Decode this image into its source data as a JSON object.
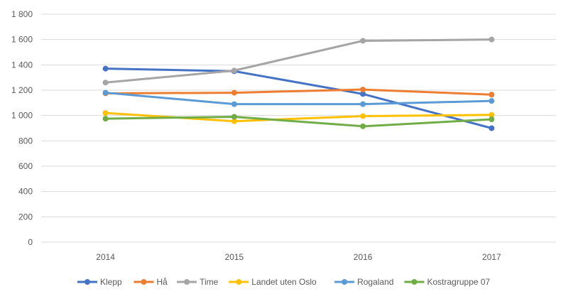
{
  "chart_data": {
    "type": "line",
    "title": "",
    "xlabel": "",
    "ylabel": "",
    "categories": [
      "2014",
      "2015",
      "2016",
      "2017"
    ],
    "ylim": [
      0,
      1800
    ],
    "yticks": [
      0,
      200,
      400,
      600,
      800,
      1000,
      1200,
      1400,
      1600,
      1800
    ],
    "ytick_labels": [
      "0",
      "200",
      "400",
      "600",
      "800",
      "1 000",
      "1 200",
      "1 400",
      "1 600",
      "1 800"
    ],
    "grid": true,
    "legend_position": "bottom",
    "series": [
      {
        "name": "Klepp",
        "color": "#4472c4",
        "values": [
          1370,
          1350,
          1170,
          900
        ]
      },
      {
        "name": "Hå",
        "color": "#ed7d31",
        "values": [
          1175,
          1180,
          1205,
          1165
        ]
      },
      {
        "name": "Time",
        "color": "#a5a5a5",
        "values": [
          1260,
          1355,
          1590,
          1600
        ]
      },
      {
        "name": "Landet uten Oslo",
        "color": "#ffc000",
        "values": [
          1020,
          955,
          995,
          1005
        ]
      },
      {
        "name": "Rogaland",
        "color": "#5b9bd5",
        "values": [
          1180,
          1090,
          1090,
          1115
        ]
      },
      {
        "name": "Kostragruppe 07",
        "color": "#70ad47",
        "values": [
          975,
          990,
          915,
          970
        ]
      }
    ]
  }
}
